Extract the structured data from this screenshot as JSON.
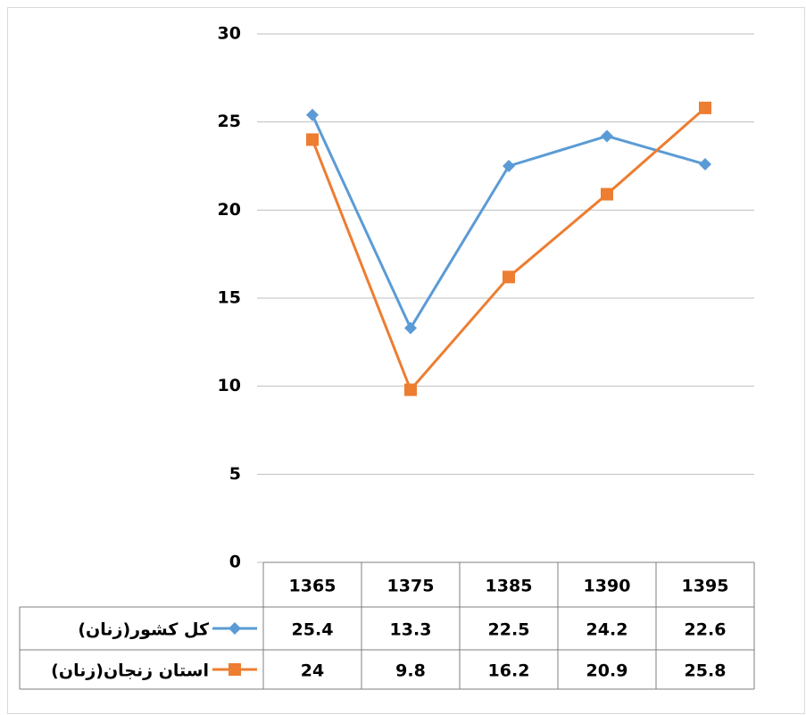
{
  "chart_data": {
    "type": "line",
    "categories": [
      "1365",
      "1375",
      "1385",
      "1390",
      "1395"
    ],
    "series": [
      {
        "name": "کل کشور(زنان)",
        "color": "#5b9bd5",
        "marker": "diamond",
        "values": [
          25.4,
          13.3,
          22.5,
          24.2,
          22.6
        ]
      },
      {
        "name": "استان زنجان(زنان)",
        "color": "#ed7d31",
        "marker": "square",
        "values": [
          24,
          9.8,
          16.2,
          20.9,
          25.8
        ]
      }
    ],
    "ylim": [
      0,
      30
    ],
    "yticks": [
      0,
      5,
      10,
      15,
      20,
      25,
      30
    ],
    "grid": true,
    "data_table": true
  }
}
